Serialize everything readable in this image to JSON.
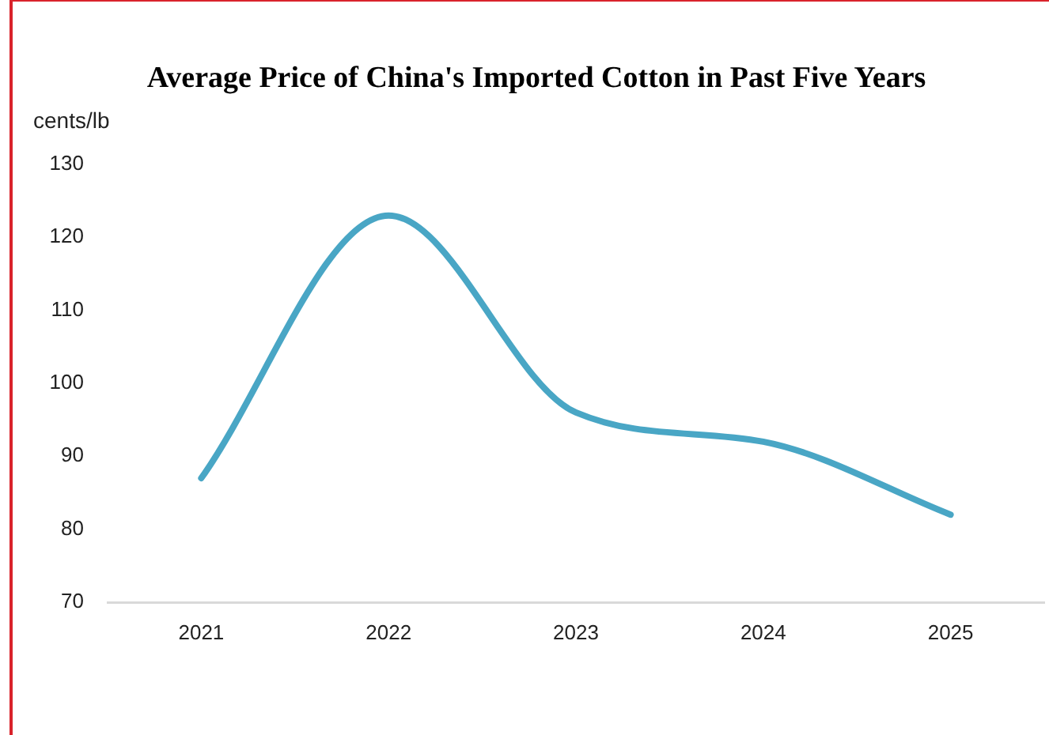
{
  "chart_data": {
    "type": "line",
    "title": "Average Price of China's Imported Cotton in Past Five Years",
    "ylabel": "cents/lb",
    "categories": [
      "2021",
      "2022",
      "2023",
      "2024",
      "2025"
    ],
    "series": [
      {
        "color": "#49a6c5",
        "values": [
          87,
          123,
          96,
          92,
          82
        ]
      }
    ],
    "ylim": [
      70,
      130
    ],
    "yticks": [
      70,
      80,
      90,
      100,
      110,
      120,
      130
    ],
    "grid": false,
    "legend": false,
    "marker": "none",
    "line_style": "solid"
  }
}
